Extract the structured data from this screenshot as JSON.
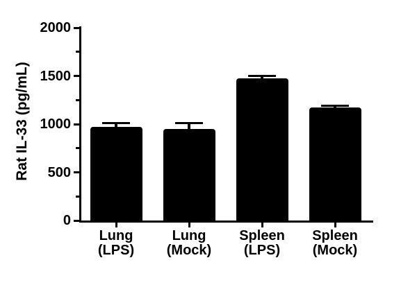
{
  "figure": {
    "background": "#ffffff",
    "bar_color": "#000000",
    "axis_color": "#000000",
    "text_color": "#000000"
  },
  "chart_data": {
    "type": "bar",
    "title": "",
    "xlabel": "",
    "ylabel": "Rat IL-33 (pg/mL)",
    "categories": [
      "Lung\n(LPS)",
      "Lung\n(Mock)",
      "Spleen\n(LPS)",
      "Spleen\n(Mock)"
    ],
    "values": [
      970,
      950,
      1475,
      1170
    ],
    "errors_plus": [
      40,
      60,
      25,
      20
    ],
    "ylim": [
      0,
      2000
    ],
    "ytick_values": [
      0,
      500,
      1000,
      1500,
      2000
    ],
    "ytick_labels": [
      "0",
      "500",
      "1000",
      "1500",
      "2000"
    ],
    "ytick_minor_values": [
      250,
      750,
      1250,
      1750
    ],
    "legend": "none",
    "grid": false
  }
}
